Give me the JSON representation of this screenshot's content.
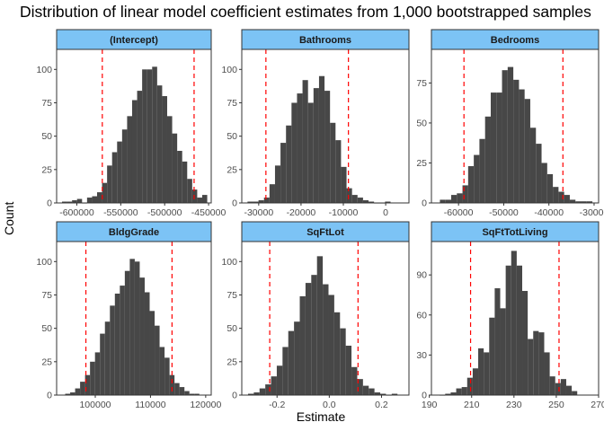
{
  "title": "Distribution of linear model coefficient estimates from 1,000 bootstrapped samples",
  "xlabel": "Estimate",
  "ylabel": "Count",
  "colors": {
    "bar": "#474747",
    "strip": "#7cc3f5",
    "ci_line": "#ff0000",
    "panel_border": "#333333"
  },
  "chart_data": [
    {
      "type": "bar",
      "facet": "(Intercept)",
      "xlim": [
        -623000,
        -447000
      ],
      "ylim": [
        0,
        115
      ],
      "xticks": [
        -600000,
        -550000,
        -500000,
        -450000
      ],
      "xtick_labels": [
        "-600000",
        "-550000",
        "-500000",
        "-450000"
      ],
      "yticks": [
        0,
        25,
        50,
        75,
        100
      ],
      "ytick_labels": [
        "0",
        "25",
        "50",
        "75",
        "100"
      ],
      "bin_width": 5700,
      "bin_centers": [
        -614000,
        -608300,
        -602600,
        -596900,
        -591200,
        -585500,
        -579800,
        -574100,
        -568400,
        -562700,
        -557000,
        -551300,
        -545600,
        -539900,
        -534200,
        -528500,
        -522800,
        -517100,
        -511400,
        -505700,
        -500000,
        -494300,
        -488600,
        -482900,
        -477200,
        -471500,
        -465800,
        -460100,
        -454400
      ],
      "counts": [
        1,
        1,
        2,
        3,
        0,
        4,
        5,
        8,
        15,
        28,
        38,
        46,
        55,
        65,
        77,
        84,
        100,
        100,
        102,
        88,
        80,
        65,
        52,
        39,
        31,
        18,
        10,
        4,
        6
      ],
      "ci": [
        -571000,
        -466500
      ]
    },
    {
      "type": "bar",
      "facet": "Bathrooms",
      "xlim": [
        -34000,
        5500
      ],
      "ylim": [
        0,
        115
      ],
      "xticks": [
        -30000,
        -20000,
        -10000,
        0
      ],
      "xtick_labels": [
        "-30000",
        "-20000",
        "-10000",
        "0"
      ],
      "yticks": [
        0,
        25,
        50,
        75,
        100
      ],
      "ytick_labels": [
        "0",
        "25",
        "50",
        "75",
        "100"
      ],
      "bin_width": 1300,
      "bin_centers": [
        -32000,
        -30700,
        -29400,
        -28100,
        -26800,
        -25500,
        -24200,
        -22900,
        -21600,
        -20300,
        -19000,
        -17700,
        -16400,
        -15100,
        -13800,
        -12500,
        -11200,
        -9900,
        -8600,
        -7300,
        -6000,
        -4700,
        -3400,
        -2100,
        -800,
        500
      ],
      "counts": [
        1,
        1,
        2,
        4,
        14,
        28,
        45,
        58,
        75,
        82,
        92,
        75,
        86,
        95,
        84,
        60,
        47,
        27,
        11,
        6,
        4,
        2,
        1,
        0,
        0,
        1
      ],
      "ci": [
        -28300,
        -8800
      ]
    },
    {
      "type": "bar",
      "facet": "Bedrooms",
      "xlim": [
        -66000,
        -29000
      ],
      "ylim": [
        0,
        96
      ],
      "xticks": [
        -60000,
        -50000,
        -40000,
        -30000
      ],
      "xtick_labels": [
        "-60000",
        "-50000",
        "-40000",
        "-30000"
      ],
      "yticks": [
        0,
        25,
        50,
        75
      ],
      "ytick_labels": [
        "0",
        "25",
        "50",
        "75"
      ],
      "bin_width": 1250,
      "bin_centers": [
        -63500,
        -62250,
        -61000,
        -59750,
        -58500,
        -57250,
        -56000,
        -54750,
        -53500,
        -52250,
        -51000,
        -49750,
        -48500,
        -47250,
        -46000,
        -44750,
        -43500,
        -42250,
        -41000,
        -39750,
        -38500,
        -37250,
        -36000,
        -34750,
        -33500,
        -32250,
        -31000
      ],
      "counts": [
        2,
        2,
        5,
        6,
        11,
        23,
        30,
        40,
        54,
        69,
        69,
        83,
        85,
        77,
        71,
        65,
        47,
        37,
        25,
        18,
        10,
        7,
        5,
        2,
        1,
        1,
        1
      ],
      "ci": [
        -58800,
        -36900
      ]
    },
    {
      "type": "bar",
      "facet": "BldgGrade",
      "xlim": [
        93000,
        121000
      ],
      "ylim": [
        0,
        115
      ],
      "xticks": [
        100000,
        110000,
        120000
      ],
      "xtick_labels": [
        "100000",
        "110000",
        "120000"
      ],
      "yticks": [
        0,
        25,
        50,
        75,
        100
      ],
      "ytick_labels": [
        "0",
        "25",
        "50",
        "75",
        "100"
      ],
      "bin_width": 900,
      "bin_centers": [
        95000,
        95900,
        96800,
        97700,
        98600,
        99500,
        100400,
        101300,
        102200,
        103100,
        104000,
        104900,
        105800,
        106700,
        107600,
        108500,
        109400,
        110300,
        111200,
        112100,
        113000,
        113900,
        114800,
        115700,
        116600,
        117500,
        118400
      ],
      "counts": [
        1,
        2,
        5,
        10,
        15,
        25,
        32,
        46,
        55,
        67,
        76,
        82,
        93,
        102,
        100,
        88,
        77,
        63,
        52,
        36,
        28,
        15,
        9,
        6,
        3,
        1,
        1
      ],
      "ci": [
        98300,
        113900
      ]
    },
    {
      "type": "bar",
      "facet": "SqFtLot",
      "xlim": [
        -0.335,
        0.305
      ],
      "ylim": [
        0,
        115
      ],
      "xticks": [
        -0.2,
        0,
        0.2
      ],
      "xtick_labels": [
        "-0.2",
        "0.0",
        "0.2"
      ],
      "yticks": [
        0,
        25,
        50,
        75,
        100
      ],
      "ytick_labels": [
        "0",
        "25",
        "50",
        "75",
        "100"
      ],
      "bin_width": 0.022,
      "bin_centers": [
        -0.3,
        -0.278,
        -0.256,
        -0.234,
        -0.212,
        -0.19,
        -0.168,
        -0.146,
        -0.124,
        -0.102,
        -0.08,
        -0.058,
        -0.036,
        -0.014,
        0.008,
        0.03,
        0.052,
        0.074,
        0.096,
        0.118,
        0.14,
        0.162,
        0.184,
        0.206,
        0.228,
        0.25
      ],
      "counts": [
        1,
        2,
        5,
        8,
        14,
        22,
        36,
        48,
        55,
        74,
        84,
        90,
        104,
        83,
        75,
        62,
        50,
        37,
        21,
        12,
        7,
        5,
        2,
        1,
        0,
        1
      ],
      "ci": [
        -0.228,
        0.11
      ]
    },
    {
      "type": "bar",
      "facet": "SqFtTotLiving",
      "xlim": [
        191,
        270
      ],
      "ylim": [
        0,
        115
      ],
      "xticks": [
        190,
        210,
        230,
        250,
        270
      ],
      "xtick_labels": [
        "190",
        "210",
        "230",
        "250",
        "270"
      ],
      "yticks": [
        0,
        30,
        60,
        90
      ],
      "ytick_labels": [
        "0",
        "30",
        "60",
        "90"
      ],
      "bin_width": 2.6,
      "bin_centers": [
        196.2,
        198.8,
        201.4,
        204.0,
        206.6,
        209.2,
        211.8,
        214.4,
        217.0,
        219.6,
        222.2,
        224.8,
        227.4,
        230.0,
        232.6,
        235.2,
        237.8,
        240.4,
        243.0,
        245.6,
        248.2,
        250.8,
        253.4,
        256.0,
        258.6
      ],
      "counts": [
        0,
        1,
        2,
        5,
        6,
        13,
        20,
        35,
        32,
        58,
        80,
        65,
        97,
        108,
        97,
        78,
        42,
        48,
        47,
        32,
        14,
        9,
        12,
        7,
        3
      ],
      "ci": [
        209.5,
        251.3
      ]
    }
  ]
}
